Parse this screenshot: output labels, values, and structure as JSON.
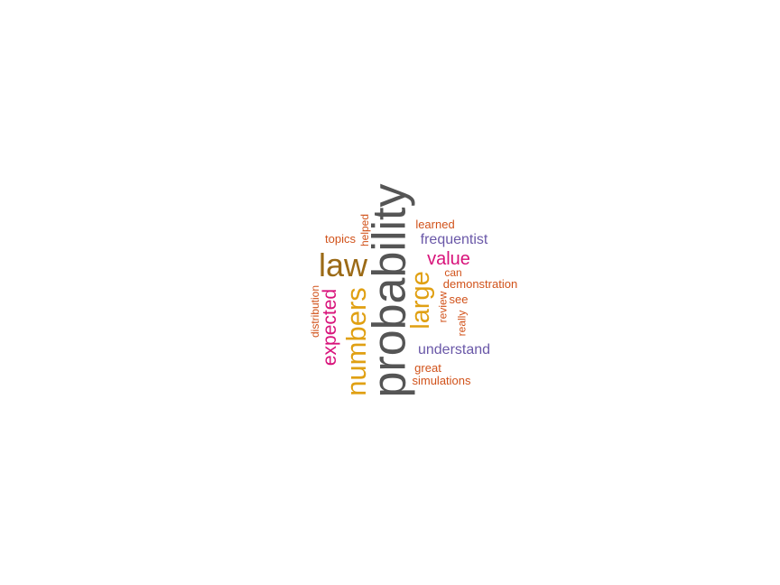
{
  "word_cloud": {
    "colors": {
      "gray": "#555555",
      "brown": "#9b6a16",
      "gold": "#e0a013",
      "magenta": "#d8127a",
      "purple": "#6a58a8",
      "orange": "#d1521a"
    },
    "words": [
      {
        "text": "probability",
        "color": "#555555",
        "vertical": true
      },
      {
        "text": "numbers",
        "color": "#e0a013",
        "vertical": true
      },
      {
        "text": "law",
        "color": "#9b6a16",
        "vertical": false
      },
      {
        "text": "large",
        "color": "#e0a013",
        "vertical": true
      },
      {
        "text": "expected",
        "color": "#d8127a",
        "vertical": true
      },
      {
        "text": "value",
        "color": "#d8127a",
        "vertical": false
      },
      {
        "text": "frequentist",
        "color": "#6a58a8",
        "vertical": false
      },
      {
        "text": "understand",
        "color": "#6a58a8",
        "vertical": false
      },
      {
        "text": "topics",
        "color": "#d1521a",
        "vertical": false
      },
      {
        "text": "helped",
        "color": "#d1521a",
        "vertical": true
      },
      {
        "text": "learned",
        "color": "#d1521a",
        "vertical": false
      },
      {
        "text": "can",
        "color": "#d1521a",
        "vertical": false
      },
      {
        "text": "demonstration",
        "color": "#d1521a",
        "vertical": false
      },
      {
        "text": "see",
        "color": "#d1521a",
        "vertical": false
      },
      {
        "text": "review",
        "color": "#d1521a",
        "vertical": true
      },
      {
        "text": "really",
        "color": "#d1521a",
        "vertical": true
      },
      {
        "text": "distribution",
        "color": "#d1521a",
        "vertical": true
      },
      {
        "text": "great",
        "color": "#d1521a",
        "vertical": false
      },
      {
        "text": "simulations",
        "color": "#d1521a",
        "vertical": false
      }
    ]
  }
}
